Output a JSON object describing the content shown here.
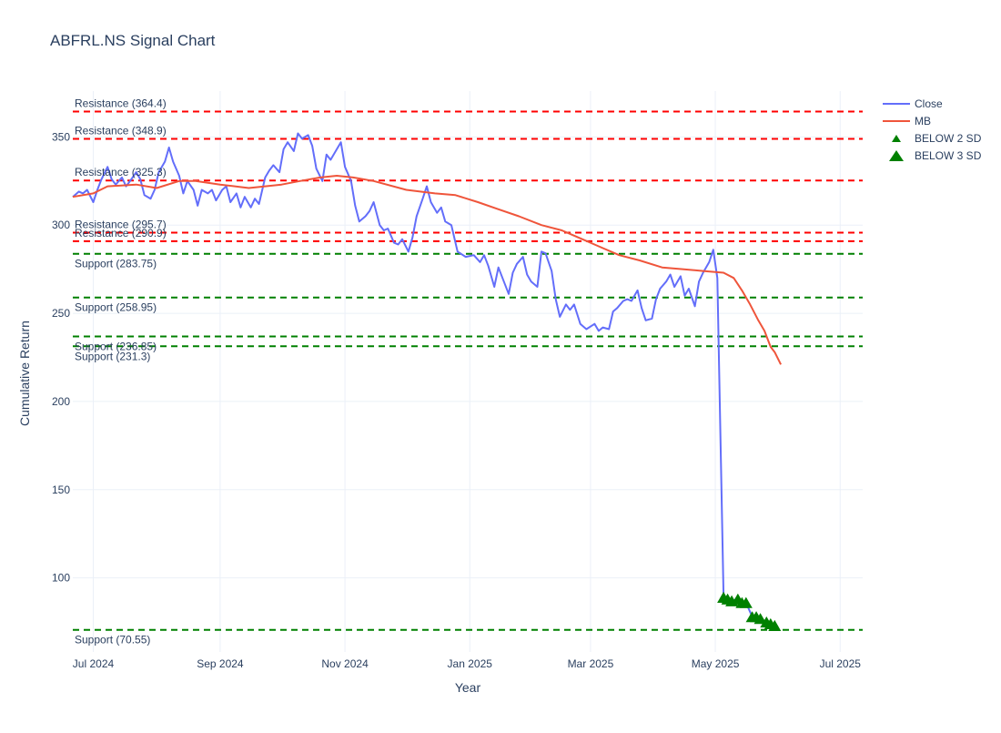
{
  "chart_data": {
    "type": "line",
    "title": "ABFRL.NS Signal Chart",
    "xlabel": "Year",
    "ylabel": "Cumulative Return",
    "x_range": [
      "2024-06-21",
      "2025-07-12"
    ],
    "ylim": [
      58,
      376
    ],
    "grid": true,
    "legend_position": "top-right",
    "x_ticks": [
      {
        "date": "2024-07-01",
        "label": "Jul 2024"
      },
      {
        "date": "2024-09-01",
        "label": "Sep 2024"
      },
      {
        "date": "2024-11-01",
        "label": "Nov 2024"
      },
      {
        "date": "2025-01-01",
        "label": "Jan 2025"
      },
      {
        "date": "2025-03-01",
        "label": "Mar 2025"
      },
      {
        "date": "2025-05-01",
        "label": "May 2025"
      },
      {
        "date": "2025-07-01",
        "label": "Jul 2025"
      }
    ],
    "y_ticks": [
      {
        "value": 100,
        "label": "100"
      },
      {
        "value": 150,
        "label": "150"
      },
      {
        "value": 200,
        "label": "200"
      },
      {
        "value": 250,
        "label": "250"
      },
      {
        "value": 300,
        "label": "300"
      },
      {
        "value": 350,
        "label": "350"
      }
    ],
    "series": [
      {
        "name": "Close",
        "type": "line",
        "color": "#636efa",
        "points": [
          [
            "2024-06-21",
            316
          ],
          [
            "2024-06-24",
            319
          ],
          [
            "2024-06-26",
            318
          ],
          [
            "2024-06-28",
            320
          ],
          [
            "2024-07-01",
            313
          ],
          [
            "2024-07-03",
            320
          ],
          [
            "2024-07-05",
            326
          ],
          [
            "2024-07-08",
            333
          ],
          [
            "2024-07-10",
            326
          ],
          [
            "2024-07-12",
            323
          ],
          [
            "2024-07-15",
            327
          ],
          [
            "2024-07-17",
            322
          ],
          [
            "2024-07-19",
            325
          ],
          [
            "2024-07-22",
            330
          ],
          [
            "2024-07-24",
            326
          ],
          [
            "2024-07-26",
            317
          ],
          [
            "2024-07-29",
            315
          ],
          [
            "2024-07-31",
            320
          ],
          [
            "2024-08-02",
            330
          ],
          [
            "2024-08-05",
            336
          ],
          [
            "2024-08-07",
            344
          ],
          [
            "2024-08-09",
            336
          ],
          [
            "2024-08-12",
            328
          ],
          [
            "2024-08-14",
            318
          ],
          [
            "2024-08-16",
            325
          ],
          [
            "2024-08-19",
            320
          ],
          [
            "2024-08-21",
            311
          ],
          [
            "2024-08-23",
            320
          ],
          [
            "2024-08-26",
            318
          ],
          [
            "2024-08-28",
            320
          ],
          [
            "2024-08-30",
            314
          ],
          [
            "2024-09-02",
            320
          ],
          [
            "2024-09-04",
            322
          ],
          [
            "2024-09-06",
            313
          ],
          [
            "2024-09-09",
            318
          ],
          [
            "2024-09-11",
            310
          ],
          [
            "2024-09-13",
            316
          ],
          [
            "2024-09-16",
            310
          ],
          [
            "2024-09-18",
            315
          ],
          [
            "2024-09-20",
            312
          ],
          [
            "2024-09-23",
            327
          ],
          [
            "2024-09-25",
            331
          ],
          [
            "2024-09-27",
            334
          ],
          [
            "2024-09-30",
            330
          ],
          [
            "2024-10-02",
            343
          ],
          [
            "2024-10-04",
            347
          ],
          [
            "2024-10-07",
            342
          ],
          [
            "2024-10-09",
            352
          ],
          [
            "2024-10-11",
            349
          ],
          [
            "2024-10-14",
            351
          ],
          [
            "2024-10-16",
            345
          ],
          [
            "2024-10-18",
            332
          ],
          [
            "2024-10-21",
            325
          ],
          [
            "2024-10-23",
            340
          ],
          [
            "2024-10-25",
            337
          ],
          [
            "2024-10-28",
            343
          ],
          [
            "2024-10-30",
            347
          ],
          [
            "2024-11-01",
            333
          ],
          [
            "2024-11-04",
            325
          ],
          [
            "2024-11-06",
            311
          ],
          [
            "2024-11-08",
            302
          ],
          [
            "2024-11-11",
            305
          ],
          [
            "2024-11-13",
            308
          ],
          [
            "2024-11-15",
            313
          ],
          [
            "2024-11-18",
            300
          ],
          [
            "2024-11-20",
            297
          ],
          [
            "2024-11-22",
            298
          ],
          [
            "2024-11-25",
            290
          ],
          [
            "2024-11-27",
            289
          ],
          [
            "2024-11-29",
            292
          ],
          [
            "2024-12-02",
            285
          ],
          [
            "2024-12-04",
            293
          ],
          [
            "2024-12-06",
            305
          ],
          [
            "2024-12-09",
            315
          ],
          [
            "2024-12-11",
            322
          ],
          [
            "2024-12-13",
            313
          ],
          [
            "2024-12-16",
            307
          ],
          [
            "2024-12-18",
            310
          ],
          [
            "2024-12-20",
            302
          ],
          [
            "2024-12-23",
            300
          ],
          [
            "2024-12-26",
            285
          ],
          [
            "2024-12-30",
            282
          ],
          [
            "2025-01-03",
            283
          ],
          [
            "2025-01-06",
            279
          ],
          [
            "2025-01-08",
            283
          ],
          [
            "2025-01-10",
            277
          ],
          [
            "2025-01-13",
            265
          ],
          [
            "2025-01-15",
            276
          ],
          [
            "2025-01-17",
            270
          ],
          [
            "2025-01-20",
            261
          ],
          [
            "2025-01-22",
            273
          ],
          [
            "2025-01-24",
            278
          ],
          [
            "2025-01-27",
            282
          ],
          [
            "2025-01-29",
            272
          ],
          [
            "2025-01-31",
            268
          ],
          [
            "2025-02-03",
            265
          ],
          [
            "2025-02-05",
            285
          ],
          [
            "2025-02-07",
            284
          ],
          [
            "2025-02-10",
            274
          ],
          [
            "2025-02-12",
            258
          ],
          [
            "2025-02-14",
            248
          ],
          [
            "2025-02-17",
            255
          ],
          [
            "2025-02-19",
            252
          ],
          [
            "2025-02-21",
            255
          ],
          [
            "2025-02-24",
            244
          ],
          [
            "2025-02-27",
            241
          ],
          [
            "2025-03-03",
            244
          ],
          [
            "2025-03-05",
            240
          ],
          [
            "2025-03-07",
            242
          ],
          [
            "2025-03-10",
            241
          ],
          [
            "2025-03-12",
            251
          ],
          [
            "2025-03-14",
            253
          ],
          [
            "2025-03-17",
            257
          ],
          [
            "2025-03-19",
            258
          ],
          [
            "2025-03-21",
            257
          ],
          [
            "2025-03-24",
            263
          ],
          [
            "2025-03-26",
            253
          ],
          [
            "2025-03-28",
            246
          ],
          [
            "2025-03-31",
            247
          ],
          [
            "2025-04-02",
            258
          ],
          [
            "2025-04-04",
            264
          ],
          [
            "2025-04-07",
            268
          ],
          [
            "2025-04-09",
            272
          ],
          [
            "2025-04-11",
            265
          ],
          [
            "2025-04-14",
            271
          ],
          [
            "2025-04-16",
            260
          ],
          [
            "2025-04-18",
            264
          ],
          [
            "2025-04-21",
            254
          ],
          [
            "2025-04-23",
            268
          ],
          [
            "2025-04-25",
            273
          ],
          [
            "2025-04-28",
            279
          ],
          [
            "2025-04-30",
            286
          ],
          [
            "2025-05-02",
            270
          ],
          [
            "2025-05-05",
            90
          ],
          [
            "2025-05-07",
            88
          ],
          [
            "2025-05-09",
            86
          ],
          [
            "2025-05-12",
            89
          ],
          [
            "2025-05-14",
            86
          ],
          [
            "2025-05-16",
            86
          ],
          [
            "2025-05-19",
            78
          ],
          [
            "2025-05-21",
            78
          ],
          [
            "2025-05-23",
            77
          ],
          [
            "2025-05-26",
            75
          ],
          [
            "2025-05-28",
            74
          ],
          [
            "2025-05-30",
            73
          ]
        ]
      },
      {
        "name": "MB",
        "type": "line",
        "color": "#ef553b",
        "points": [
          [
            "2024-06-21",
            316
          ],
          [
            "2024-07-01",
            318
          ],
          [
            "2024-07-08",
            322
          ],
          [
            "2024-07-22",
            323
          ],
          [
            "2024-08-01",
            321
          ],
          [
            "2024-08-12",
            325
          ],
          [
            "2024-08-20",
            325
          ],
          [
            "2024-09-01",
            323
          ],
          [
            "2024-09-15",
            321
          ],
          [
            "2024-10-01",
            323
          ],
          [
            "2024-10-10",
            325
          ],
          [
            "2024-10-20",
            327
          ],
          [
            "2024-10-28",
            328
          ],
          [
            "2024-11-05",
            327
          ],
          [
            "2024-11-15",
            325
          ],
          [
            "2024-12-01",
            320
          ],
          [
            "2024-12-15",
            318
          ],
          [
            "2024-12-25",
            317
          ],
          [
            "2025-01-05",
            313
          ],
          [
            "2025-01-15",
            309
          ],
          [
            "2025-01-25",
            305
          ],
          [
            "2025-02-05",
            300
          ],
          [
            "2025-02-15",
            297
          ],
          [
            "2025-02-25",
            292
          ],
          [
            "2025-03-05",
            288
          ],
          [
            "2025-03-15",
            283
          ],
          [
            "2025-03-25",
            280
          ],
          [
            "2025-04-05",
            276
          ],
          [
            "2025-04-15",
            275
          ],
          [
            "2025-04-25",
            274
          ],
          [
            "2025-05-05",
            273
          ],
          [
            "2025-05-10",
            270
          ],
          [
            "2025-05-14",
            263
          ],
          [
            "2025-05-18",
            255
          ],
          [
            "2025-05-22",
            246
          ],
          [
            "2025-05-25",
            240
          ],
          [
            "2025-05-28",
            231
          ],
          [
            "2025-05-30",
            228
          ],
          [
            "2025-06-02",
            221
          ]
        ]
      },
      {
        "name": "BELOW 2 SD",
        "type": "markers",
        "color": "#008000",
        "points": [
          [
            "2025-05-05",
            90
          ],
          [
            "2025-05-07",
            89
          ],
          [
            "2025-05-09",
            88
          ],
          [
            "2025-05-12",
            89
          ],
          [
            "2025-05-14",
            87
          ],
          [
            "2025-05-16",
            87
          ],
          [
            "2025-05-19",
            78
          ],
          [
            "2025-05-21",
            79
          ],
          [
            "2025-05-23",
            77
          ],
          [
            "2025-05-26",
            76
          ],
          [
            "2025-05-28",
            75
          ],
          [
            "2025-05-30",
            74
          ]
        ]
      },
      {
        "name": "BELOW 3 SD",
        "type": "markers",
        "color": "#008000",
        "points": [
          [
            "2025-05-05",
            89
          ],
          [
            "2025-05-07",
            88
          ],
          [
            "2025-05-09",
            87
          ],
          [
            "2025-05-12",
            88
          ],
          [
            "2025-05-14",
            86
          ],
          [
            "2025-05-16",
            86
          ],
          [
            "2025-05-19",
            78
          ],
          [
            "2025-05-21",
            78
          ],
          [
            "2025-05-23",
            77
          ],
          [
            "2025-05-26",
            75
          ],
          [
            "2025-05-28",
            74
          ],
          [
            "2025-05-30",
            73
          ]
        ]
      }
    ],
    "levels": [
      {
        "kind": "resistance",
        "value": 364.4,
        "label": "Resistance (364.4)",
        "color": "#ff0000"
      },
      {
        "kind": "resistance",
        "value": 348.9,
        "label": "Resistance (348.9)",
        "color": "#ff0000"
      },
      {
        "kind": "resistance",
        "value": 325.3,
        "label": "Resistance (325.3)",
        "color": "#ff0000"
      },
      {
        "kind": "resistance",
        "value": 295.7,
        "label": "Resistance (295.7)",
        "color": "#ff0000"
      },
      {
        "kind": "resistance",
        "value": 290.9,
        "label": "Resistance (290.9)",
        "color": "#ff0000"
      },
      {
        "kind": "support",
        "value": 283.75,
        "label": "Support (283.75)",
        "color": "#008000"
      },
      {
        "kind": "support",
        "value": 258.95,
        "label": "Support (258.95)",
        "color": "#008000"
      },
      {
        "kind": "support",
        "value": 236.85,
        "label": "Support (236.85)",
        "color": "#008000"
      },
      {
        "kind": "support",
        "value": 231.3,
        "label": "Support (231.3)",
        "color": "#008000"
      },
      {
        "kind": "support",
        "value": 70.55,
        "label": "Support (70.55)",
        "color": "#008000"
      }
    ]
  }
}
